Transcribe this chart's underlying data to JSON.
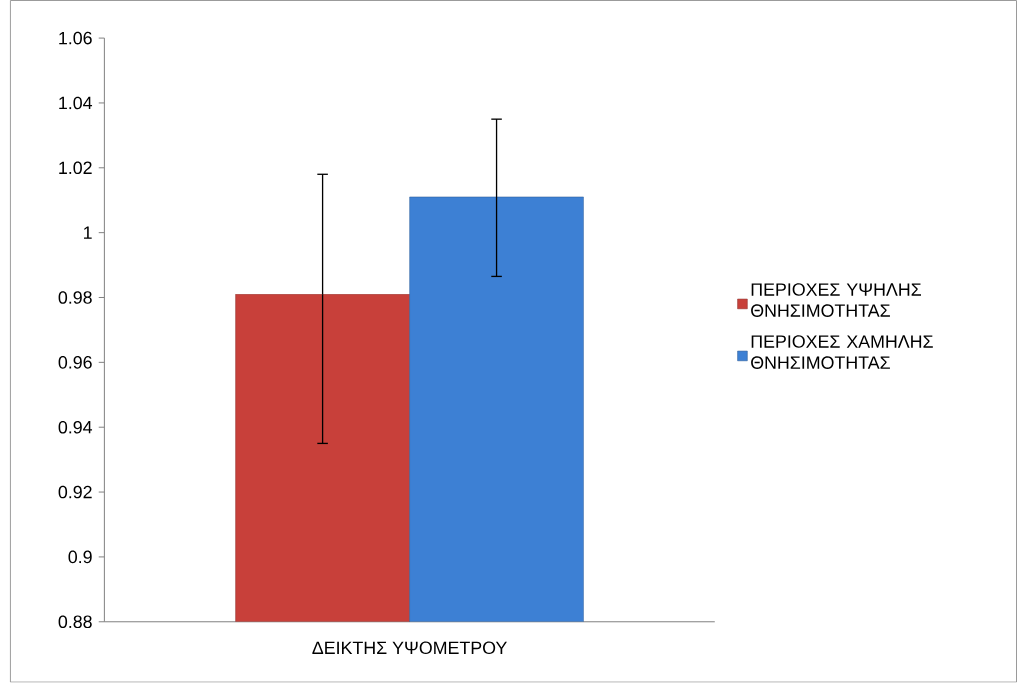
{
  "chart_data": {
    "type": "bar",
    "categories": [
      "ΔΕΙΚΤΗΣ ΥΨΟΜΕΤΡΟΥ"
    ],
    "series": [
      {
        "name": "ΠΕΡΙΟΧΕΣ ΥΨΗΛΗΣ ΘΝΗΣΙΜΟΤΗΤΑΣ",
        "color": "#c8403a",
        "values": [
          0.981
        ],
        "errors": [
          [
            0.935,
            1.018
          ]
        ]
      },
      {
        "name": "ΠΕΡΙΟΧΕΣ ΧΑΜΗΛΗΣ ΘΝΗΣΙΜΟΤΗΤΑΣ",
        "color": "#3d80d4",
        "values": [
          1.011
        ],
        "errors": [
          [
            0.9865,
            1.035
          ]
        ]
      }
    ],
    "ylim": [
      0.88,
      1.06
    ],
    "yticks": [
      0.88,
      0.9,
      0.92,
      0.94,
      0.96,
      0.98,
      1,
      1.02,
      1.04,
      1.06
    ],
    "legend": "right"
  }
}
